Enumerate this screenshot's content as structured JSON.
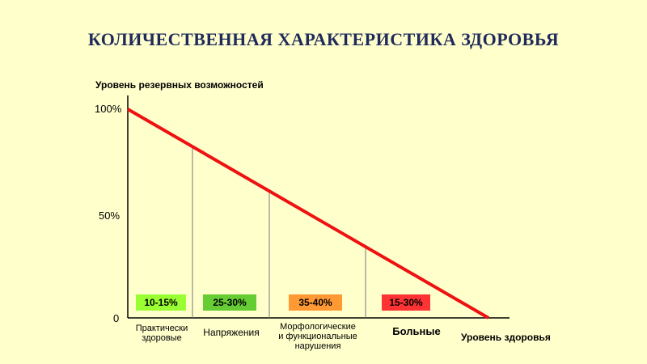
{
  "title": "КОЛИЧЕСТВЕННАЯ ХАРАКТЕРИСТИКА ЗДОРОВЬЯ",
  "y_axis_label": "Уровень резервных возможностей",
  "x_axis_label": "Уровень здоровья",
  "y_ticks": [
    "100%",
    "50%",
    "0"
  ],
  "groups": [
    {
      "label": "Практически\nздоровые",
      "range": "10-15%",
      "color": "#99FF33"
    },
    {
      "label": "Напряжения",
      "range": "25-30%",
      "color": "#66CC33"
    },
    {
      "label": "Морфологические\nи функциональные\nнарушения",
      "range": "35-40%",
      "color": "#FF9933"
    },
    {
      "label": "Больные",
      "range": "15-30%",
      "color": "#FF3333"
    }
  ],
  "colors": {
    "background": "#FFFFCC",
    "title": "#1F2A5A",
    "line": "#EE1111",
    "axis": "#000000",
    "divider": "#777777"
  }
}
